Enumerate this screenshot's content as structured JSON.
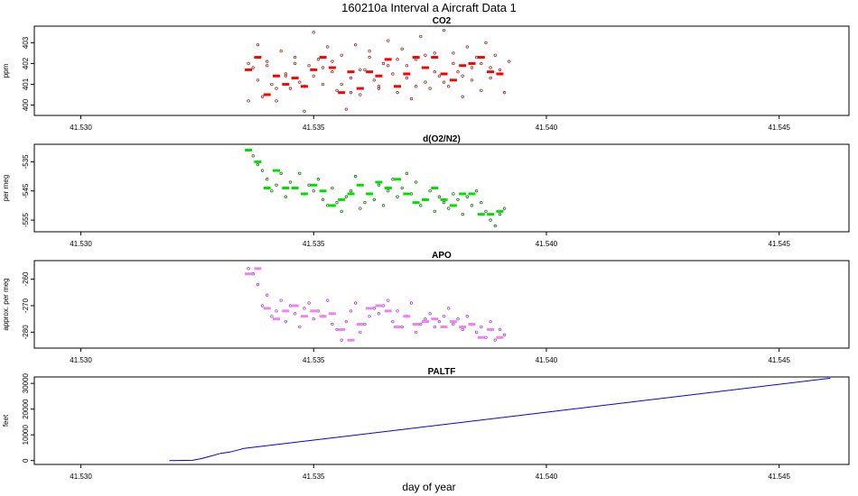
{
  "chart_data": {
    "type": "scatter",
    "title": "160210a   Interval a Aircraft Data 1",
    "xlabel": "day of year",
    "xlim": [
      41.529,
      41.5465
    ],
    "xticks": [
      41.53,
      41.535,
      41.54,
      41.545
    ],
    "xtick_labels": [
      "41.530",
      "41.535",
      "41.540",
      "41.545"
    ],
    "panels": [
      {
        "name": "CO2",
        "title": "CO2",
        "ylabel": "ppm",
        "ylim": [
          399.5,
          403.8
        ],
        "yticks": [
          400,
          401,
          402,
          403
        ],
        "ytick_labels": [
          "400",
          "401",
          "402",
          "403"
        ],
        "points_color": "#8b1a1a",
        "mean_color": "#ff0000",
        "scatter_x": [
          41.5336,
          41.5337,
          41.5338,
          41.5339,
          41.534,
          41.5341,
          41.5342,
          41.5343,
          41.5344,
          41.5345,
          41.5346,
          41.5347,
          41.5348,
          41.5349,
          41.535,
          41.5351,
          41.5352,
          41.5353,
          41.5354,
          41.5355,
          41.5356,
          41.5357,
          41.5358,
          41.5359,
          41.536,
          41.5361,
          41.5362,
          41.5363,
          41.5364,
          41.5365,
          41.5366,
          41.5367,
          41.5368,
          41.5369,
          41.537,
          41.5371,
          41.5372,
          41.5373,
          41.5374,
          41.5375,
          41.5376,
          41.5377,
          41.5378,
          41.5379,
          41.538,
          41.5381,
          41.5382,
          41.5383,
          41.5384,
          41.5385,
          41.5386,
          41.5387,
          41.5388,
          41.5389,
          41.539,
          41.5391,
          41.5392,
          41.5336,
          41.5338,
          41.534,
          41.5342,
          41.5344,
          41.5346,
          41.5348,
          41.535,
          41.5352,
          41.5354,
          41.5356,
          41.5358,
          41.536,
          41.5362,
          41.5364,
          41.5366,
          41.5368,
          41.537,
          41.5372,
          41.5374,
          41.5376,
          41.5378,
          41.538,
          41.5382,
          41.5384,
          41.5386,
          41.5388,
          41.539
        ],
        "scatter_y": [
          400.2,
          401.8,
          402.9,
          400.4,
          402.1,
          401.0,
          400.2,
          402.6,
          401.4,
          400.8,
          402.3,
          401.1,
          399.7,
          401.9,
          403.5,
          402.2,
          401.0,
          402.8,
          401.6,
          400.7,
          402.4,
          399.8,
          401.3,
          402.9,
          400.5,
          401.7,
          402.6,
          401.2,
          400.9,
          402.0,
          403.1,
          401.5,
          400.6,
          402.7,
          401.9,
          400.3,
          402.2,
          403.3,
          401.1,
          400.8,
          402.5,
          401.4,
          403.6,
          400.9,
          402.0,
          401.6,
          400.4,
          402.8,
          401.2,
          402.3,
          400.7,
          403.0,
          401.8,
          402.4,
          401.5,
          400.6,
          402.1,
          402.0,
          401.2,
          401.9,
          400.8,
          401.5,
          402.0,
          400.9,
          401.4,
          401.8,
          402.1,
          401.0,
          400.6,
          401.7,
          402.3,
          400.8,
          401.9,
          402.2,
          401.3,
          400.9,
          402.4,
          401.6,
          401.1,
          402.5,
          401.4,
          401.8,
          402.0,
          401.3,
          401.7
        ],
        "mean_x": [
          41.5336,
          41.5338,
          41.534,
          41.5342,
          41.5344,
          41.5346,
          41.5348,
          41.535,
          41.5352,
          41.5354,
          41.5356,
          41.5358,
          41.536,
          41.5362,
          41.5364,
          41.5366,
          41.5368,
          41.537,
          41.5372,
          41.5374,
          41.5376,
          41.5378,
          41.538,
          41.5382,
          41.5384,
          41.5386,
          41.5388,
          41.539
        ],
        "mean_y": [
          401.7,
          402.3,
          400.5,
          401.4,
          401.0,
          401.3,
          400.9,
          401.7,
          402.3,
          401.8,
          400.6,
          401.6,
          400.8,
          401.6,
          401.4,
          402.2,
          400.9,
          401.5,
          402.3,
          401.8,
          402.3,
          401.5,
          401.2,
          401.9,
          402.0,
          402.3,
          401.6,
          401.5
        ]
      },
      {
        "name": "d(O2/N2)",
        "title": "d(O2/N2)",
        "ylabel": "per meg",
        "ylim": [
          -559,
          -529
        ],
        "yticks": [
          -535,
          -545,
          -555
        ],
        "ytick_labels": [
          "-535",
          "-545",
          "-555"
        ],
        "points_color": "#006400",
        "mean_color": "#00e000",
        "scatter_x": [
          41.5336,
          41.5337,
          41.5338,
          41.5339,
          41.534,
          41.5341,
          41.5342,
          41.5343,
          41.5344,
          41.5345,
          41.5346,
          41.5347,
          41.5348,
          41.5349,
          41.535,
          41.5351,
          41.5352,
          41.5353,
          41.5354,
          41.5355,
          41.5356,
          41.5357,
          41.5358,
          41.5359,
          41.536,
          41.5361,
          41.5362,
          41.5363,
          41.5364,
          41.5365,
          41.5366,
          41.5367,
          41.5368,
          41.5369,
          41.537,
          41.5371,
          41.5372,
          41.5373,
          41.5374,
          41.5375,
          41.5376,
          41.5377,
          41.5378,
          41.5379,
          41.538,
          41.5381,
          41.5382,
          41.5383,
          41.5384,
          41.5385,
          41.5386,
          41.5387,
          41.5388,
          41.5389,
          41.539,
          41.5391
        ],
        "scatter_y": [
          -531,
          -533,
          -536,
          -538,
          -541,
          -545,
          -543,
          -539,
          -547,
          -542,
          -544,
          -539,
          -546,
          -543,
          -545,
          -541,
          -548,
          -550,
          -544,
          -549,
          -552,
          -547,
          -545,
          -540,
          -551,
          -549,
          -546,
          -548,
          -543,
          -550,
          -545,
          -541,
          -547,
          -544,
          -539,
          -546,
          -542,
          -550,
          -548,
          -545,
          -552,
          -547,
          -549,
          -551,
          -546,
          -548,
          -553,
          -547,
          -550,
          -545,
          -549,
          -552,
          -555,
          -557,
          -553,
          -551
        ],
        "mean_x": [
          41.5336,
          41.5338,
          41.534,
          41.5342,
          41.5344,
          41.5346,
          41.5348,
          41.535,
          41.5352,
          41.5354,
          41.5356,
          41.5358,
          41.536,
          41.5362,
          41.5364,
          41.5366,
          41.5368,
          41.537,
          41.5372,
          41.5374,
          41.5376,
          41.5378,
          41.538,
          41.5382,
          41.5384,
          41.5386,
          41.5388,
          41.539
        ],
        "mean_y": [
          -531,
          -535,
          -544,
          -538,
          -544,
          -544,
          -546,
          -543,
          -545,
          -550,
          -548,
          -546,
          -543,
          -546,
          -542,
          -544,
          -541,
          -546,
          -549,
          -548,
          -544,
          -548,
          -550,
          -546,
          -546,
          -553,
          -553,
          -552
        ]
      },
      {
        "name": "APO",
        "title": "APO",
        "ylabel": "approx. per meg",
        "ylim": [
          -286,
          -253
        ],
        "yticks": [
          -260,
          -270,
          -280
        ],
        "ytick_labels": [
          "-260",
          "-270",
          "-280"
        ],
        "points_color": "#9b30ff",
        "mean_color": "#ee82ee",
        "scatter_x": [
          41.5336,
          41.5337,
          41.5338,
          41.5339,
          41.534,
          41.5341,
          41.5342,
          41.5343,
          41.5344,
          41.5345,
          41.5346,
          41.5347,
          41.5348,
          41.5349,
          41.535,
          41.5351,
          41.5352,
          41.5353,
          41.5354,
          41.5355,
          41.5356,
          41.5357,
          41.5358,
          41.5359,
          41.536,
          41.5361,
          41.5362,
          41.5363,
          41.5364,
          41.5365,
          41.5366,
          41.5367,
          41.5368,
          41.5369,
          41.537,
          41.5371,
          41.5372,
          41.5373,
          41.5374,
          41.5375,
          41.5376,
          41.5377,
          41.5378,
          41.5379,
          41.538,
          41.5381,
          41.5382,
          41.5383,
          41.5384,
          41.5385,
          41.5386,
          41.5387,
          41.5388,
          41.5389,
          41.539,
          41.5391
        ],
        "scatter_y": [
          -256,
          -258,
          -262,
          -270,
          -266,
          -274,
          -272,
          -268,
          -276,
          -270,
          -273,
          -278,
          -271,
          -269,
          -275,
          -272,
          -274,
          -268,
          -277,
          -279,
          -283,
          -276,
          -272,
          -269,
          -280,
          -277,
          -274,
          -271,
          -273,
          -270,
          -268,
          -276,
          -272,
          -278,
          -274,
          -269,
          -280,
          -277,
          -275,
          -273,
          -278,
          -276,
          -274,
          -271,
          -277,
          -275,
          -279,
          -274,
          -277,
          -280,
          -278,
          -282,
          -276,
          -283,
          -279,
          -281
        ],
        "mean_x": [
          41.5336,
          41.5338,
          41.534,
          41.5342,
          41.5344,
          41.5346,
          41.5348,
          41.535,
          41.5352,
          41.5354,
          41.5356,
          41.5358,
          41.536,
          41.5362,
          41.5364,
          41.5366,
          41.5368,
          41.537,
          41.5372,
          41.5374,
          41.5376,
          41.5378,
          41.538,
          41.5382,
          41.5384,
          41.5386,
          41.5388,
          41.539
        ],
        "mean_y": [
          -258,
          -256,
          -271,
          -275,
          -272,
          -270,
          -274,
          -272,
          -274,
          -273,
          -279,
          -283,
          -277,
          -271,
          -270,
          -272,
          -278,
          -274,
          -277,
          -276,
          -275,
          -278,
          -276,
          -278,
          -277,
          -282,
          -279,
          -282
        ]
      },
      {
        "name": "PALTF",
        "title": "PALTF",
        "ylabel": "feet",
        "ylim": [
          -1500,
          32500
        ],
        "yticks": [
          0,
          10000,
          20000,
          30000
        ],
        "ytick_labels": [
          "0",
          "10000",
          "20000",
          "30000"
        ],
        "line_color": "#0000ee",
        "line_x": [
          41.5319,
          41.5324,
          41.5326,
          41.5328,
          41.533,
          41.5332,
          41.5334,
          41.5335,
          41.5461
        ],
        "line_y": [
          0,
          100,
          800,
          1800,
          2800,
          3300,
          4200,
          4700,
          32000
        ]
      }
    ]
  }
}
